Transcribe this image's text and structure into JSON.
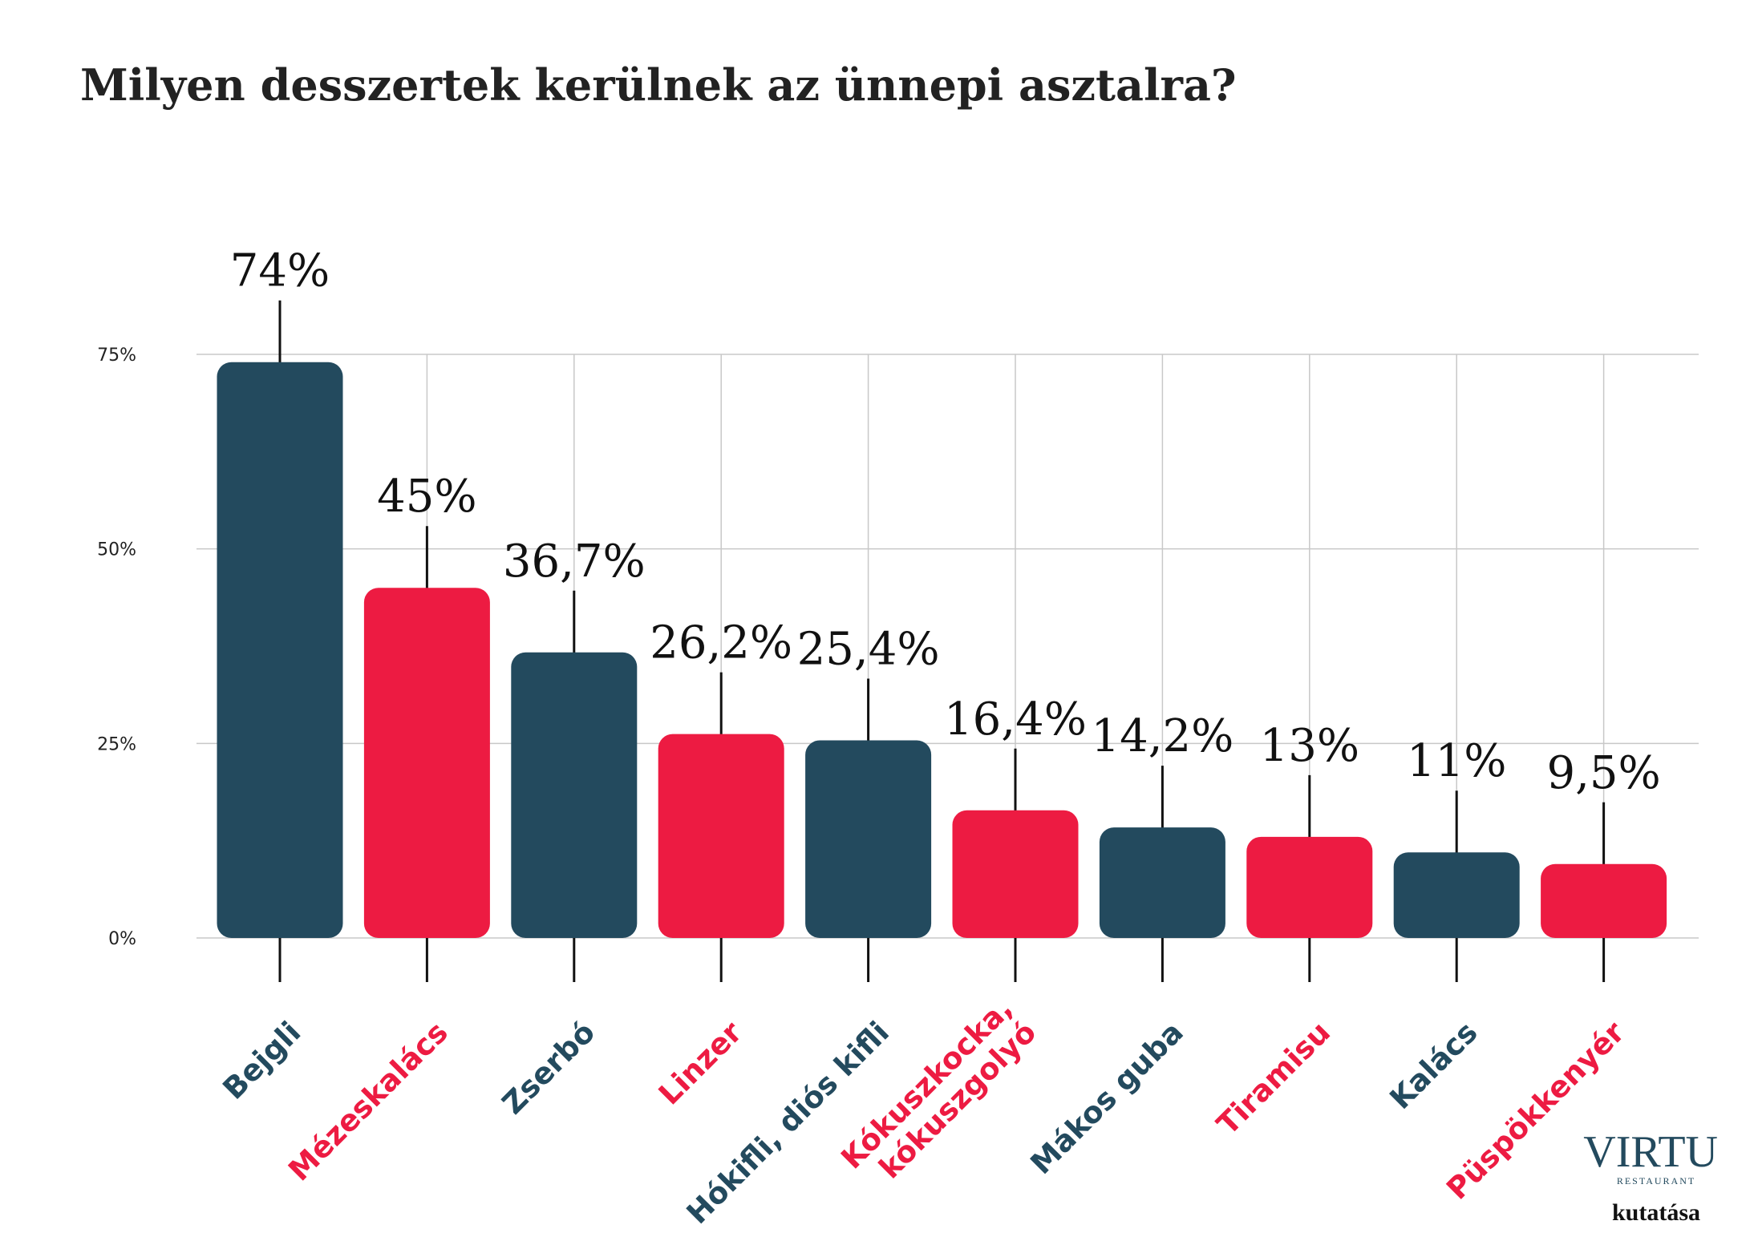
{
  "chart_data": {
    "type": "bar",
    "title": "Milyen desszertek kerülnek az ünnepi asztalra?",
    "categories": [
      "Bejgli",
      "Mézeskalács",
      "Zserbó",
      "Linzer",
      "Hókifli, diós kifli",
      "Kókuszkocka,\nkókuszgolyó",
      "Mákos guba",
      "Tiramisu",
      "Kalács",
      "Püspökkenyér"
    ],
    "values": [
      74,
      45,
      36.7,
      26.2,
      25.4,
      16.4,
      14.2,
      13,
      11,
      9.5
    ],
    "value_labels": [
      "74%",
      "45%",
      "36,7%",
      "26,2%",
      "25,4%",
      "16,4%",
      "14,2%",
      "13%",
      "11%",
      "9,5%"
    ],
    "colors": [
      "#234a5e",
      "#ed1b42",
      "#234a5e",
      "#ed1b42",
      "#234a5e",
      "#ed1b42",
      "#234a5e",
      "#ed1b42",
      "#234a5e",
      "#ed1b42"
    ],
    "ylim": [
      0,
      75
    ],
    "yticks": [
      {
        "value": 0,
        "label": "0%"
      },
      {
        "value": 25,
        "label": "25%"
      },
      {
        "value": 50,
        "label": "50%"
      },
      {
        "value": 75,
        "label": "75%"
      }
    ],
    "grid": true
  },
  "logo": {
    "name": "VIRTU",
    "sub": "RESTAURANT",
    "caption": "kutatása"
  }
}
